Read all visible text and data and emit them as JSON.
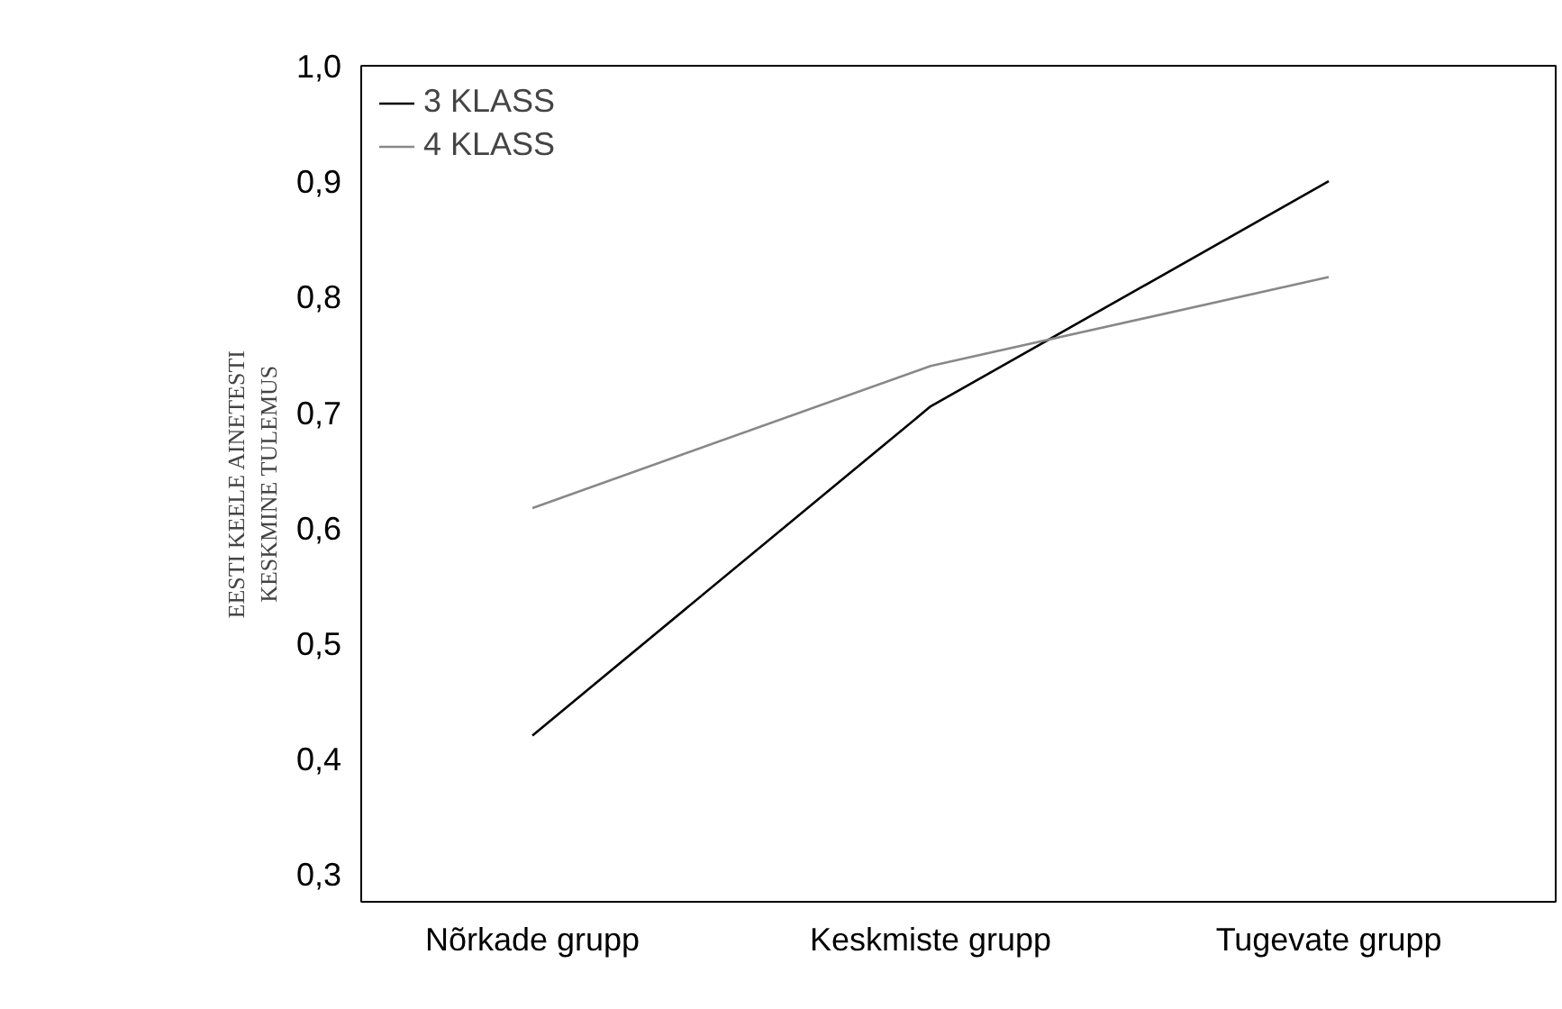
{
  "chart_data": {
    "type": "line",
    "categories": [
      "Nõrkade grupp",
      "Keskmiste grupp",
      "Tugevate grupp"
    ],
    "ylabel": "EESTI KEELE AINETESTI\nKESKMINE TULEMUS",
    "series": [
      {
        "name": "3 KLASS",
        "color": "#000000",
        "values": [
          0.42,
          0.705,
          0.9
        ]
      },
      {
        "name": "4 KLASS",
        "color": "#888888",
        "values": [
          0.617,
          0.74,
          0.817
        ]
      }
    ],
    "ylim": [
      0.276,
      1.0
    ],
    "yticks": [
      {
        "value": 0.3,
        "label": "0,3"
      },
      {
        "value": 0.4,
        "label": "0,4"
      },
      {
        "value": 0.5,
        "label": "0,5"
      },
      {
        "value": 0.6,
        "label": "0,6"
      },
      {
        "value": 0.7,
        "label": "0,7"
      },
      {
        "value": 0.8,
        "label": "0,8"
      },
      {
        "value": 0.9,
        "label": "0,9"
      },
      {
        "value": 1.0,
        "label": "1,0"
      }
    ],
    "legend": "top left",
    "grid": false,
    "line_style": "solid"
  }
}
